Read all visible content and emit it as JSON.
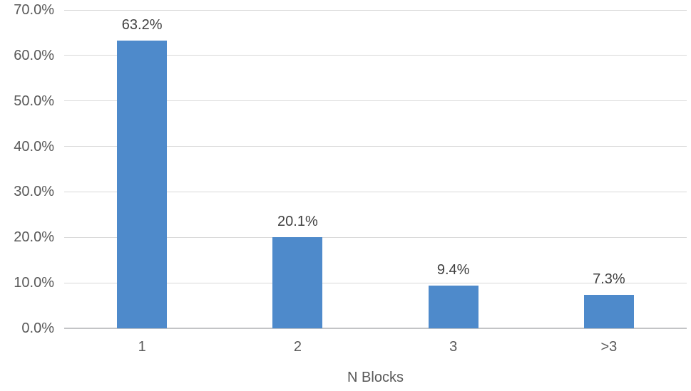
{
  "chart_data": {
    "type": "bar",
    "title": "",
    "xlabel": "N Blocks",
    "ylabel": "",
    "categories": [
      "1",
      "2",
      "3",
      ">3"
    ],
    "values": [
      63.2,
      20.1,
      9.4,
      7.3
    ],
    "data_labels": [
      "63.2%",
      "20.1%",
      "9.4%",
      "7.3%"
    ],
    "ylim": [
      0,
      70
    ],
    "ytick_step": 10,
    "ytick_labels": [
      "0.0%",
      "10.0%",
      "20.0%",
      "30.0%",
      "40.0%",
      "50.0%",
      "60.0%",
      "70.0%"
    ],
    "grid": true,
    "legend": false,
    "colors": {
      "bar": "#4E8ACB",
      "gridline": "#D9D9D9",
      "axis_line": "#C3C4C6",
      "axis_text": "#595959",
      "data_label_text": "#404040",
      "background": "#FFFFFF"
    }
  }
}
